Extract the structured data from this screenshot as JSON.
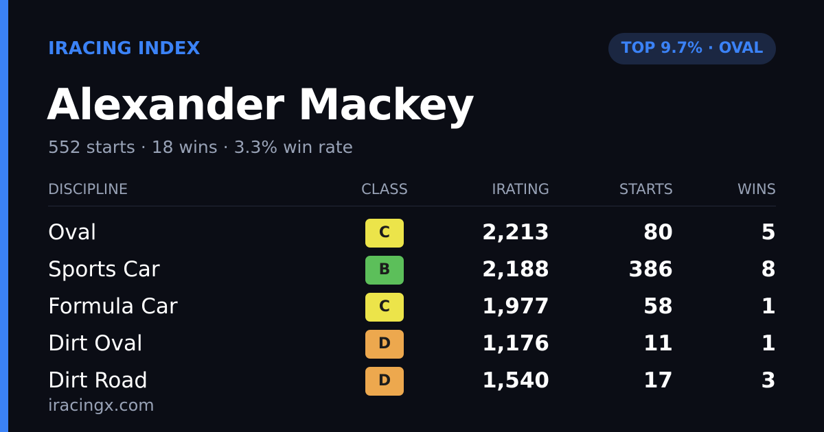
{
  "header": {
    "label": "IRACING INDEX",
    "badge": "TOP 9.7% · OVAL"
  },
  "profile": {
    "name": "Alexander Mackey",
    "summary": "552 starts · 18 wins · 3.3% win rate"
  },
  "table": {
    "headers": [
      "DISCIPLINE",
      "CLASS",
      "IRATING",
      "STARTS",
      "WINS"
    ],
    "rows": [
      {
        "discipline": "Oval",
        "class": "C",
        "class_color": "#ece44a",
        "irating": "2,213",
        "starts": "80",
        "wins": "5"
      },
      {
        "discipline": "Sports Car",
        "class": "B",
        "class_color": "#5cbf5a",
        "irating": "2,188",
        "starts": "386",
        "wins": "8"
      },
      {
        "discipline": "Formula Car",
        "class": "C",
        "class_color": "#ece44a",
        "irating": "1,977",
        "starts": "58",
        "wins": "1"
      },
      {
        "discipline": "Dirt Oval",
        "class": "D",
        "class_color": "#eda84e",
        "irating": "1,176",
        "starts": "11",
        "wins": "1"
      },
      {
        "discipline": "Dirt Road",
        "class": "D",
        "class_color": "#eda84e",
        "irating": "1,540",
        "starts": "17",
        "wins": "3"
      }
    ]
  },
  "footer": {
    "site": "iracingx.com"
  }
}
